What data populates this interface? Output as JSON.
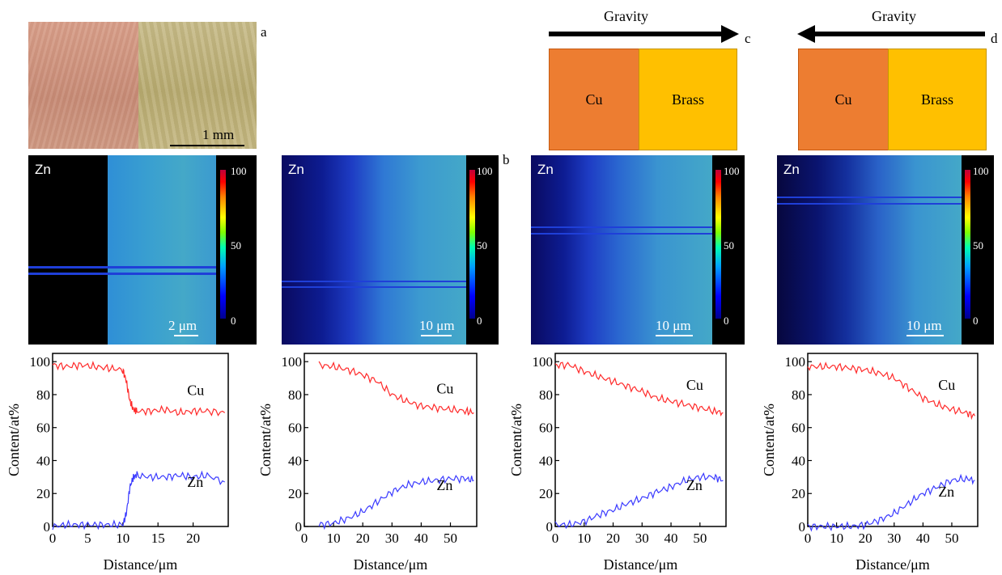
{
  "panel_labels": {
    "a": "a",
    "b": "b",
    "c": "c",
    "d": "d"
  },
  "panel_a": {
    "scalebar_label": "1 mm"
  },
  "panel_c": {
    "gravity_label": "Gravity",
    "arrow_direction": "right",
    "left_block": "Cu",
    "right_block": "Brass"
  },
  "panel_d": {
    "gravity_label": "Gravity",
    "arrow_direction": "left",
    "left_block": "Cu",
    "right_block": "Brass"
  },
  "maps": [
    {
      "element": "Zn",
      "scalebar": "2 μm",
      "cbar_ticks": [
        "100",
        "50",
        "0"
      ]
    },
    {
      "element": "Zn",
      "scalebar": "10 μm",
      "cbar_ticks": [
        "100",
        "50",
        "0"
      ]
    },
    {
      "element": "Zn",
      "scalebar": "10 μm",
      "cbar_ticks": [
        "100",
        "50",
        "0"
      ]
    },
    {
      "element": "Zn",
      "scalebar": "10 μm",
      "cbar_ticks": [
        "100",
        "50",
        "0"
      ]
    }
  ],
  "colors": {
    "cu_line": "#ff2a2a",
    "zn_line": "#3a3aff",
    "cu_block": "#ed7d31",
    "brass_block": "#ffc000"
  },
  "chart_data": [
    {
      "type": "line",
      "xlabel": "Distance/μm",
      "ylabel": "Content/at%",
      "xlim": [
        0,
        25
      ],
      "ylim": [
        0,
        105
      ],
      "xticks": [
        0,
        5,
        10,
        15,
        20
      ],
      "yticks": [
        0,
        20,
        40,
        60,
        80,
        100
      ],
      "series": [
        {
          "name": "Cu",
          "x": [
            0,
            2,
            4,
            6,
            8,
            10,
            10.5,
            11,
            11.5,
            12,
            14,
            16,
            18,
            20,
            22,
            24.5
          ],
          "y": [
            98,
            97,
            98,
            97,
            96,
            95,
            88,
            76,
            71,
            70,
            70,
            71,
            69,
            70,
            70,
            69
          ]
        },
        {
          "name": "Zn",
          "x": [
            0,
            2,
            4,
            6,
            8,
            10,
            10.5,
            11,
            11.5,
            12,
            14,
            16,
            18,
            20,
            22,
            24.5
          ],
          "y": [
            0,
            1,
            1,
            1,
            1,
            1,
            8,
            24,
            30,
            31,
            30,
            30,
            31,
            30,
            31,
            27
          ]
        }
      ]
    },
    {
      "type": "line",
      "xlabel": "Distance/μm",
      "ylabel": "Content/at%",
      "xlim": [
        0,
        59
      ],
      "ylim": [
        0,
        105
      ],
      "xticks": [
        0,
        10,
        20,
        30,
        40,
        50
      ],
      "yticks": [
        0,
        20,
        40,
        60,
        80,
        100
      ],
      "series": [
        {
          "name": "Cu",
          "x": [
            5,
            10,
            15,
            20,
            25,
            30,
            35,
            40,
            45,
            50,
            55,
            58
          ],
          "y": [
            98,
            97,
            95,
            92,
            88,
            80,
            76,
            73,
            72,
            71,
            70,
            69
          ]
        },
        {
          "name": "Zn",
          "x": [
            5,
            10,
            15,
            20,
            25,
            30,
            35,
            40,
            45,
            50,
            55,
            58
          ],
          "y": [
            1,
            2,
            5,
            9,
            15,
            21,
            25,
            27,
            28,
            29,
            29,
            28
          ]
        }
      ]
    },
    {
      "type": "line",
      "xlabel": "Distance/μm",
      "ylabel": "Content/at%",
      "xlim": [
        0,
        59
      ],
      "ylim": [
        0,
        105
      ],
      "xticks": [
        0,
        10,
        20,
        30,
        40,
        50
      ],
      "yticks": [
        0,
        20,
        40,
        60,
        80,
        100
      ],
      "series": [
        {
          "name": "Cu",
          "x": [
            0,
            5,
            10,
            15,
            20,
            25,
            30,
            35,
            40,
            45,
            50,
            55,
            58
          ],
          "y": [
            98,
            98,
            94,
            91,
            88,
            85,
            82,
            78,
            76,
            74,
            72,
            70,
            69
          ]
        },
        {
          "name": "Zn",
          "x": [
            0,
            5,
            10,
            15,
            20,
            25,
            30,
            35,
            40,
            45,
            50,
            55,
            58
          ],
          "y": [
            1,
            1,
            3,
            7,
            10,
            14,
            17,
            21,
            24,
            28,
            30,
            30,
            28
          ]
        }
      ]
    },
    {
      "type": "line",
      "xlabel": "Distance/μm",
      "ylabel": "Content/at%",
      "xlim": [
        0,
        59
      ],
      "ylim": [
        0,
        105
      ],
      "xticks": [
        0,
        10,
        20,
        30,
        40,
        50
      ],
      "yticks": [
        0,
        20,
        40,
        60,
        80,
        100
      ],
      "series": [
        {
          "name": "Cu",
          "x": [
            0,
            5,
            10,
            15,
            20,
            25,
            30,
            35,
            40,
            45,
            50,
            55,
            58
          ],
          "y": [
            97,
            97,
            97,
            96,
            95,
            93,
            90,
            84,
            78,
            74,
            71,
            69,
            67
          ]
        },
        {
          "name": "Zn",
          "x": [
            0,
            5,
            10,
            15,
            20,
            25,
            30,
            35,
            40,
            45,
            50,
            55,
            58
          ],
          "y": [
            0,
            0,
            0,
            0,
            1,
            4,
            8,
            14,
            20,
            24,
            28,
            29,
            28
          ]
        }
      ]
    }
  ]
}
